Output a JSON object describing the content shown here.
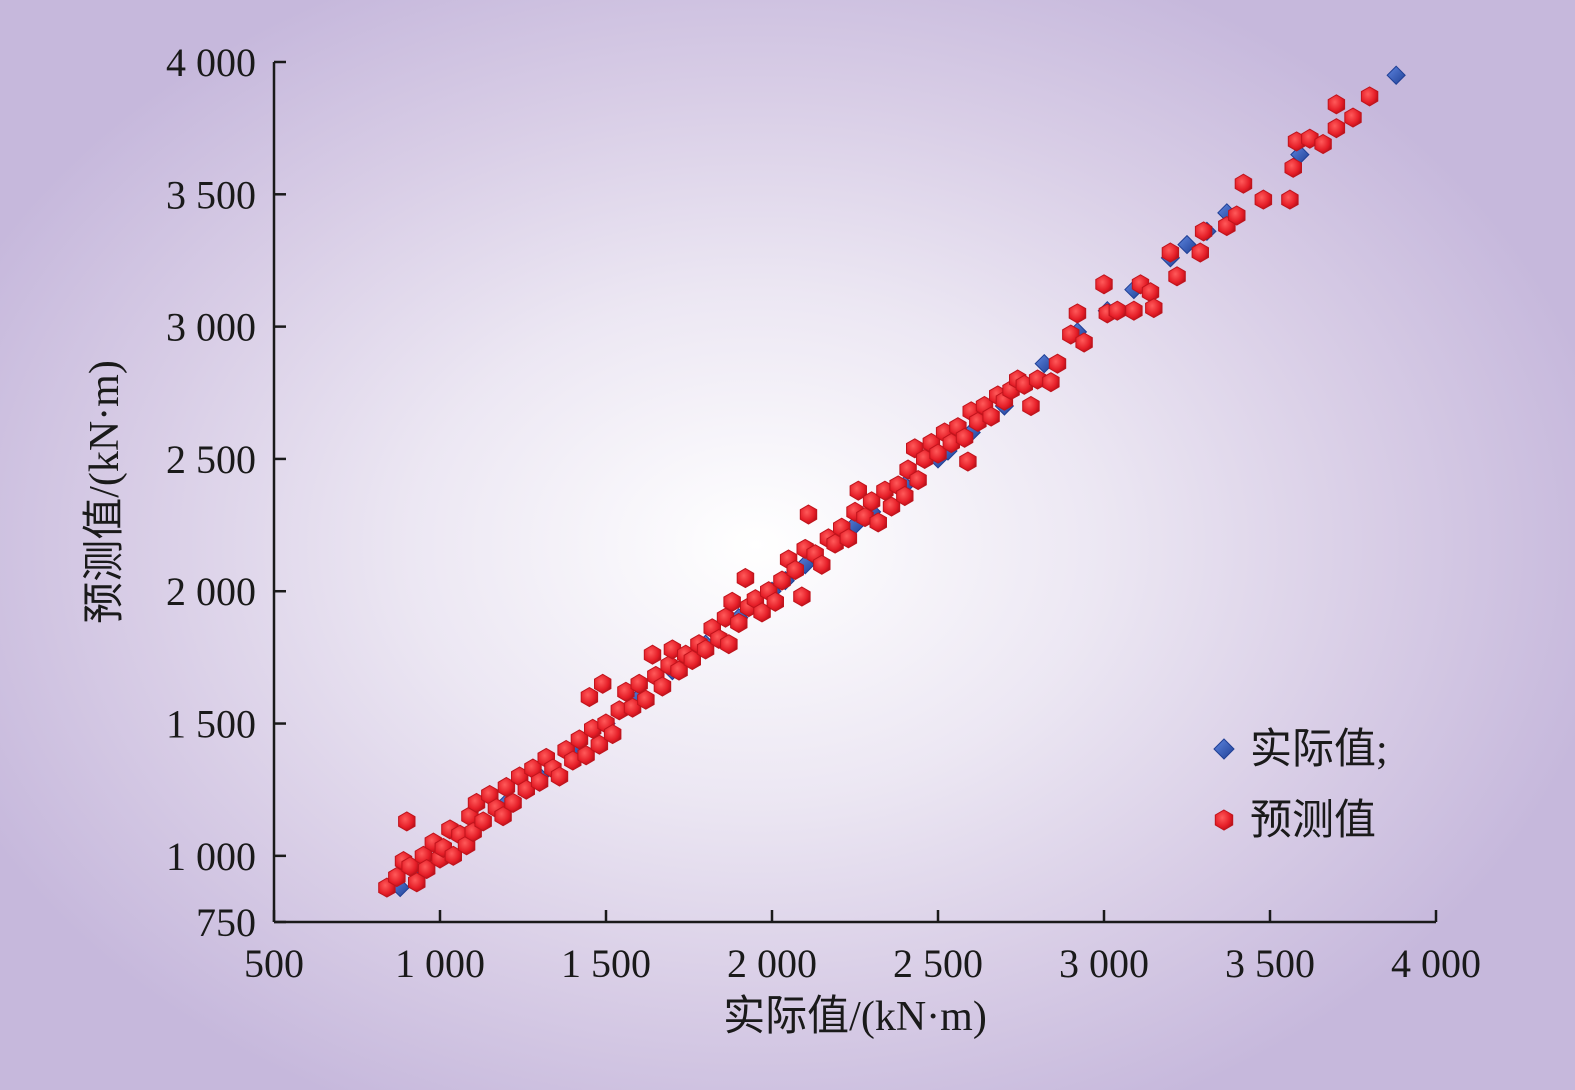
{
  "chart_data": {
    "type": "scatter",
    "xlabel": "实际值/(kN·m)",
    "ylabel": "预测值/(kN·m)",
    "xlim": [
      500,
      4000
    ],
    "ylim": [
      750,
      4000
    ],
    "x_ticks": [
      500,
      1000,
      1500,
      2000,
      2500,
      3000,
      3500,
      4000
    ],
    "x_tick_labels": [
      "500",
      "1 000",
      "1 500",
      "2 000",
      "2 500",
      "3 000",
      "3 500",
      "4 000"
    ],
    "y_ticks": [
      750,
      1000,
      1500,
      2000,
      2500,
      3000,
      3500,
      4000
    ],
    "y_tick_labels": [
      "750",
      "1 000",
      "1 500",
      "2 000",
      "2 500",
      "3 000",
      "3 500",
      "4 000"
    ],
    "grid": false,
    "legend_position": "bottom-right",
    "series": [
      {
        "name": "实际值;",
        "marker": "diamond",
        "color": "#2f55b3",
        "points": [
          [
            880,
            880
          ],
          [
            950,
            950
          ],
          [
            1000,
            1000
          ],
          [
            1100,
            1100
          ],
          [
            1200,
            1200
          ],
          [
            1300,
            1300
          ],
          [
            1400,
            1400
          ],
          [
            1500,
            1500
          ],
          [
            1600,
            1600
          ],
          [
            1700,
            1700
          ],
          [
            1800,
            1800
          ],
          [
            1900,
            1900
          ],
          [
            2000,
            2000
          ],
          [
            2040,
            2040
          ],
          [
            2100,
            2100
          ],
          [
            2200,
            2200
          ],
          [
            2250,
            2250
          ],
          [
            2300,
            2300
          ],
          [
            2400,
            2400
          ],
          [
            2500,
            2500
          ],
          [
            2530,
            2530
          ],
          [
            2600,
            2600
          ],
          [
            2700,
            2700
          ],
          [
            2820,
            2860
          ],
          [
            2920,
            2980
          ],
          [
            3010,
            3060
          ],
          [
            3090,
            3140
          ],
          [
            3200,
            3260
          ],
          [
            3250,
            3310
          ],
          [
            3310,
            3360
          ],
          [
            3370,
            3430
          ],
          [
            3590,
            3650
          ],
          [
            3880,
            3950
          ]
        ]
      },
      {
        "name": "预测值",
        "marker": "hexagon",
        "color": "#e8202a",
        "points": [
          [
            840,
            880
          ],
          [
            870,
            920
          ],
          [
            890,
            980
          ],
          [
            900,
            1130
          ],
          [
            910,
            960
          ],
          [
            930,
            900
          ],
          [
            950,
            1000
          ],
          [
            960,
            950
          ],
          [
            980,
            1050
          ],
          [
            1000,
            990
          ],
          [
            1010,
            1030
          ],
          [
            1030,
            1100
          ],
          [
            1040,
            1000
          ],
          [
            1060,
            1080
          ],
          [
            1080,
            1040
          ],
          [
            1090,
            1150
          ],
          [
            1100,
            1090
          ],
          [
            1110,
            1200
          ],
          [
            1130,
            1130
          ],
          [
            1150,
            1230
          ],
          [
            1170,
            1180
          ],
          [
            1190,
            1150
          ],
          [
            1200,
            1260
          ],
          [
            1220,
            1200
          ],
          [
            1240,
            1300
          ],
          [
            1260,
            1250
          ],
          [
            1280,
            1330
          ],
          [
            1300,
            1280
          ],
          [
            1320,
            1370
          ],
          [
            1340,
            1330
          ],
          [
            1360,
            1300
          ],
          [
            1380,
            1400
          ],
          [
            1400,
            1360
          ],
          [
            1420,
            1440
          ],
          [
            1440,
            1380
          ],
          [
            1450,
            1600
          ],
          [
            1460,
            1480
          ],
          [
            1480,
            1420
          ],
          [
            1490,
            1650
          ],
          [
            1500,
            1500
          ],
          [
            1520,
            1460
          ],
          [
            1540,
            1550
          ],
          [
            1560,
            1620
          ],
          [
            1580,
            1560
          ],
          [
            1600,
            1650
          ],
          [
            1620,
            1590
          ],
          [
            1640,
            1760
          ],
          [
            1650,
            1680
          ],
          [
            1670,
            1640
          ],
          [
            1690,
            1720
          ],
          [
            1700,
            1780
          ],
          [
            1720,
            1700
          ],
          [
            1740,
            1760
          ],
          [
            1760,
            1740
          ],
          [
            1780,
            1800
          ],
          [
            1800,
            1780
          ],
          [
            1820,
            1860
          ],
          [
            1840,
            1820
          ],
          [
            1860,
            1900
          ],
          [
            1870,
            1800
          ],
          [
            1880,
            1960
          ],
          [
            1900,
            1880
          ],
          [
            1920,
            2050
          ],
          [
            1930,
            1940
          ],
          [
            1950,
            1970
          ],
          [
            1970,
            1920
          ],
          [
            1990,
            2000
          ],
          [
            2010,
            1960
          ],
          [
            2030,
            2040
          ],
          [
            2050,
            2120
          ],
          [
            2070,
            2080
          ],
          [
            2090,
            1980
          ],
          [
            2100,
            2160
          ],
          [
            2110,
            2290
          ],
          [
            2130,
            2140
          ],
          [
            2150,
            2100
          ],
          [
            2170,
            2200
          ],
          [
            2190,
            2180
          ],
          [
            2210,
            2240
          ],
          [
            2230,
            2200
          ],
          [
            2250,
            2300
          ],
          [
            2260,
            2380
          ],
          [
            2280,
            2280
          ],
          [
            2300,
            2340
          ],
          [
            2320,
            2260
          ],
          [
            2340,
            2380
          ],
          [
            2360,
            2320
          ],
          [
            2380,
            2400
          ],
          [
            2400,
            2360
          ],
          [
            2410,
            2460
          ],
          [
            2430,
            2540
          ],
          [
            2440,
            2420
          ],
          [
            2460,
            2500
          ],
          [
            2480,
            2560
          ],
          [
            2500,
            2520
          ],
          [
            2520,
            2600
          ],
          [
            2540,
            2560
          ],
          [
            2560,
            2620
          ],
          [
            2580,
            2580
          ],
          [
            2590,
            2490
          ],
          [
            2600,
            2680
          ],
          [
            2620,
            2640
          ],
          [
            2640,
            2700
          ],
          [
            2660,
            2660
          ],
          [
            2680,
            2740
          ],
          [
            2700,
            2720
          ],
          [
            2720,
            2760
          ],
          [
            2740,
            2800
          ],
          [
            2760,
            2780
          ],
          [
            2780,
            2700
          ],
          [
            2800,
            2800
          ],
          [
            2840,
            2790
          ],
          [
            2860,
            2860
          ],
          [
            2900,
            2970
          ],
          [
            2920,
            3050
          ],
          [
            2940,
            2940
          ],
          [
            3000,
            3160
          ],
          [
            3010,
            3050
          ],
          [
            3040,
            3060
          ],
          [
            3090,
            3060
          ],
          [
            3110,
            3160
          ],
          [
            3140,
            3130
          ],
          [
            3150,
            3070
          ],
          [
            3200,
            3280
          ],
          [
            3220,
            3190
          ],
          [
            3290,
            3280
          ],
          [
            3300,
            3360
          ],
          [
            3370,
            3380
          ],
          [
            3400,
            3420
          ],
          [
            3420,
            3540
          ],
          [
            3480,
            3480
          ],
          [
            3560,
            3480
          ],
          [
            3570,
            3600
          ],
          [
            3580,
            3700
          ],
          [
            3620,
            3710
          ],
          [
            3660,
            3690
          ],
          [
            3700,
            3750
          ],
          [
            3700,
            3840
          ],
          [
            3750,
            3790
          ],
          [
            3800,
            3870
          ]
        ]
      }
    ]
  }
}
